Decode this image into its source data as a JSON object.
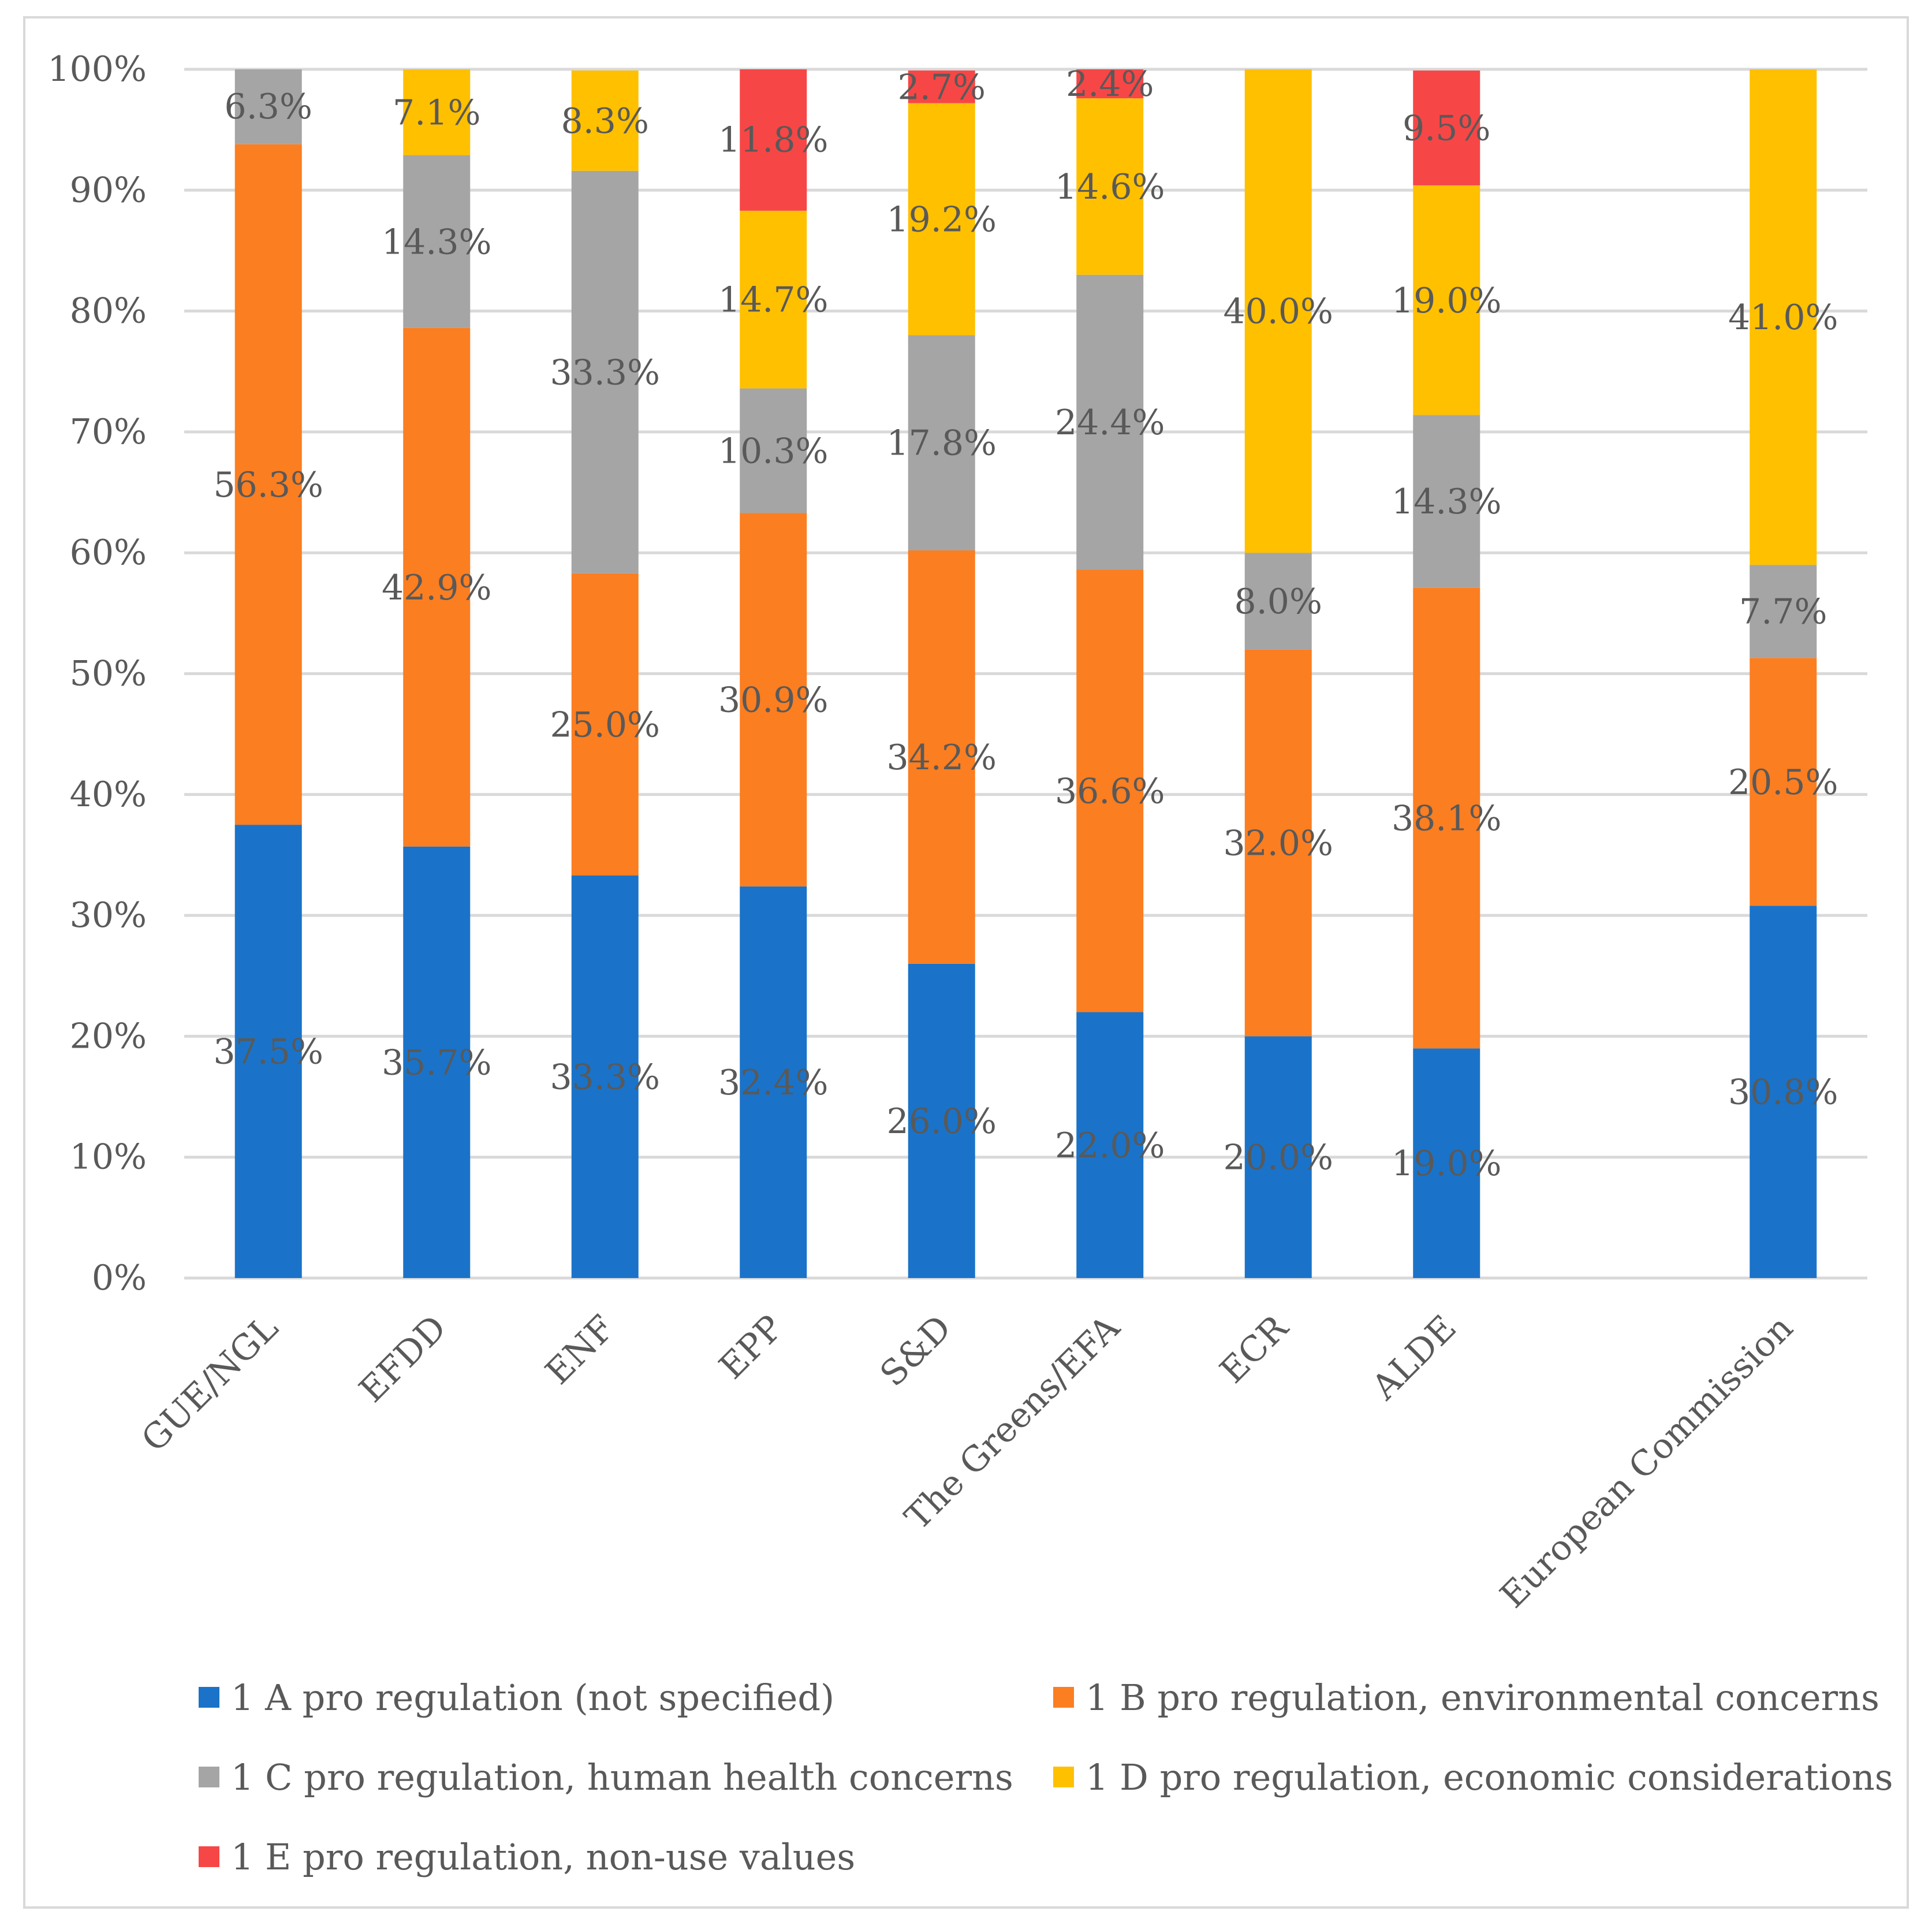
{
  "chart_data": {
    "type": "bar",
    "stacked": true,
    "title": "",
    "xlabel": "",
    "ylabel": "",
    "ylim": [
      0,
      100
    ],
    "yticks": [
      "0%",
      "10%",
      "20%",
      "30%",
      "40%",
      "50%",
      "60%",
      "70%",
      "80%",
      "90%",
      "100%"
    ],
    "categories": [
      "GUE/NGL",
      "EFDD",
      "ENF",
      "EPP",
      "S&D",
      "The Greens/EFA",
      "ECR",
      "ALDE",
      "",
      "European Commission"
    ],
    "legend_position": "bottom",
    "series": [
      {
        "name": "1 A pro regulation (not specified)",
        "color": "#1a73c8",
        "values": [
          37.5,
          35.7,
          33.3,
          32.4,
          26.0,
          22.0,
          20.0,
          19.0,
          null,
          30.8
        ],
        "labels": [
          "37.5%",
          "35.7%",
          "33.3%",
          "32.4%",
          "26.0%",
          "22.0%",
          "20.0%",
          "19.0%",
          "",
          "30.8%"
        ]
      },
      {
        "name": "1 B pro regulation, environmental concerns",
        "color": "#fb7e21",
        "values": [
          56.3,
          42.9,
          25.0,
          30.9,
          34.2,
          36.6,
          32.0,
          38.1,
          null,
          20.5
        ],
        "labels": [
          "56.3%",
          "42.9%",
          "25.0%",
          "30.9%",
          "34.2%",
          "36.6%",
          "32.0%",
          "38.1%",
          "",
          "20.5%"
        ]
      },
      {
        "name": "1 C pro regulation, human health concerns",
        "color": "#a5a5a5",
        "values": [
          6.3,
          14.3,
          33.3,
          10.3,
          17.8,
          24.4,
          8.0,
          14.3,
          null,
          7.7
        ],
        "labels": [
          "6.3%",
          "14.3%",
          "33.3%",
          "10.3%",
          "17.8%",
          "24.4%",
          "8.0%",
          "14.3%",
          "",
          "7.7%"
        ]
      },
      {
        "name": "1 D pro regulation, economic considerations",
        "color": "#ffc000",
        "values": [
          0,
          7.1,
          8.3,
          14.7,
          19.2,
          14.6,
          40.0,
          19.0,
          null,
          41.0
        ],
        "labels": [
          "",
          "7.1%",
          "8.3%",
          "14.7%",
          "19.2%",
          "14.6%",
          "40.0%",
          "19.0%",
          "",
          "41.0%"
        ]
      },
      {
        "name": "1 E pro regulation, non-use values",
        "color": "#f74646",
        "values": [
          0,
          0,
          0,
          11.8,
          2.7,
          2.4,
          0,
          9.5,
          null,
          0
        ],
        "labels": [
          "",
          "",
          "",
          "11.8%",
          "2.7%",
          "2.4%",
          "",
          "9.5%",
          "",
          ""
        ]
      }
    ]
  }
}
